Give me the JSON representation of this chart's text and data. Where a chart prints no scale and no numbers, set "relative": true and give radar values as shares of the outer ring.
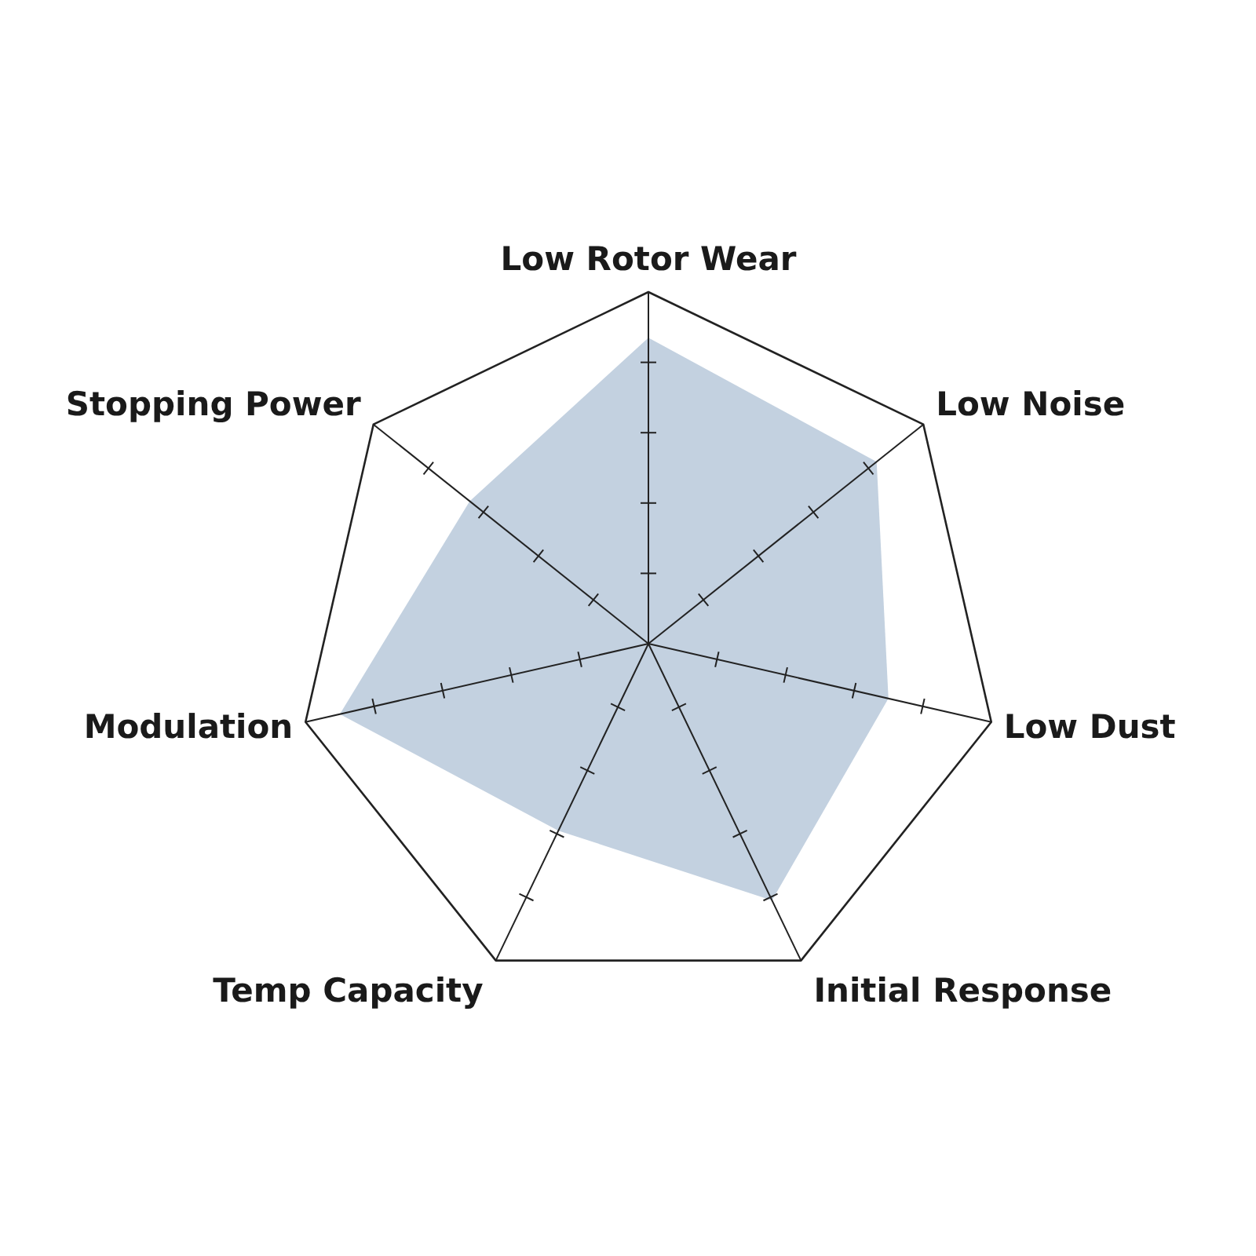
{
  "chart_data": {
    "type": "radar",
    "relative": true,
    "categories": [
      "Low Rotor Wear",
      "Low Noise",
      "Low Dust",
      "Initial Response",
      "Temp Capacity",
      "Modulation",
      "Stopping Power"
    ],
    "series": [
      {
        "color": "#c3d1e0",
        "values": [
          0.87,
          0.83,
          0.7,
          0.81,
          0.59,
          0.9,
          0.65
        ]
      }
    ]
  }
}
